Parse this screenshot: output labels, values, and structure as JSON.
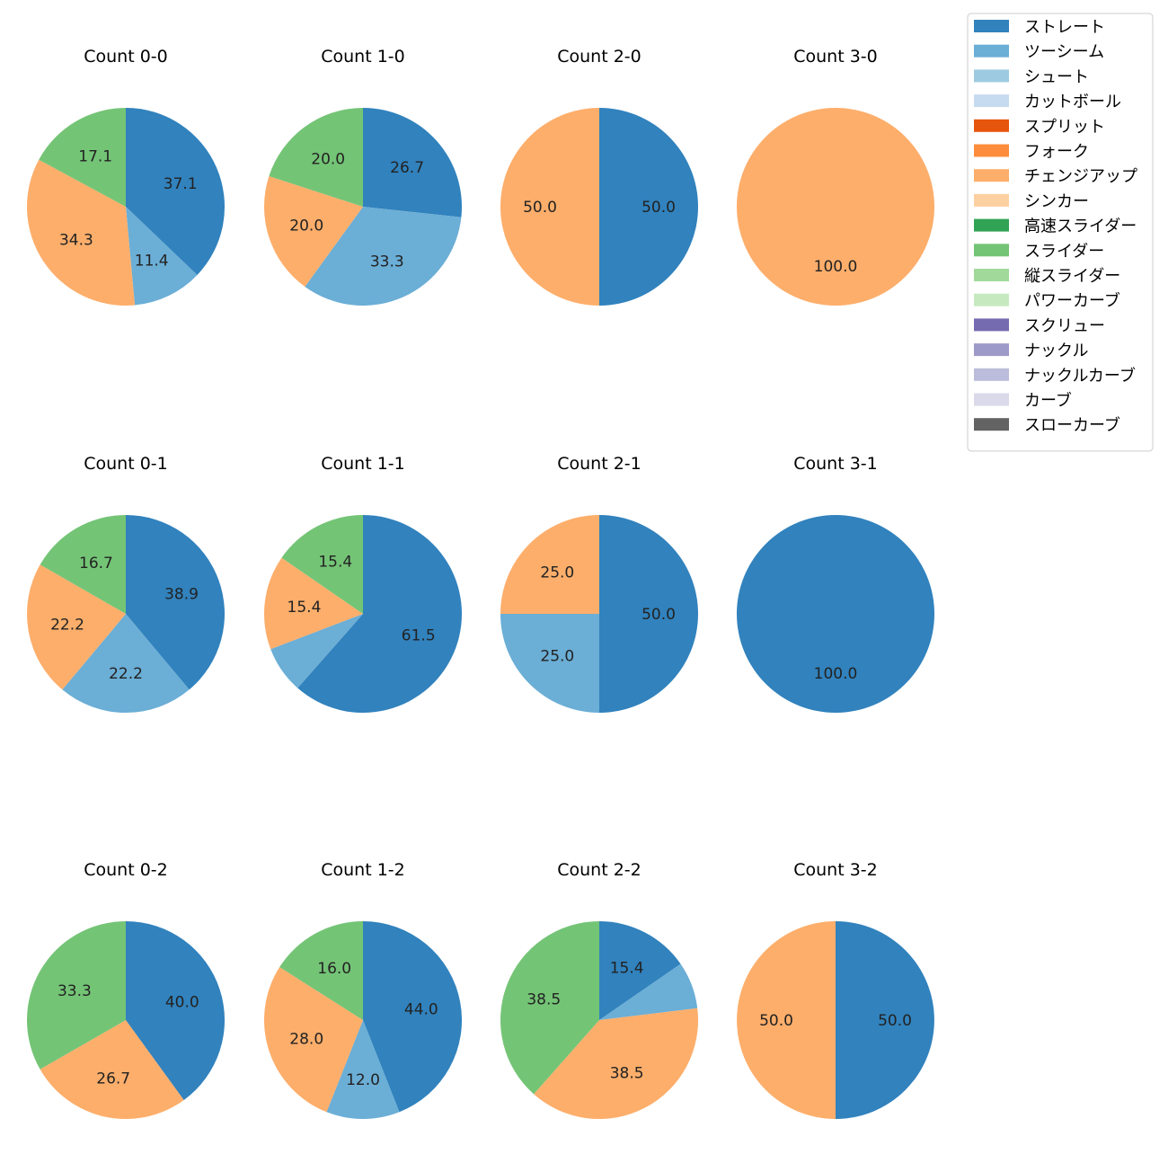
{
  "legend": {
    "placement": "top-right",
    "items": [
      {
        "label": "ストレート",
        "color": "#3182bd"
      },
      {
        "label": "ツーシーム",
        "color": "#6baed6"
      },
      {
        "label": "シュート",
        "color": "#9ecae1"
      },
      {
        "label": "カットボール",
        "color": "#c6dbef"
      },
      {
        "label": "スプリット",
        "color": "#e6550d"
      },
      {
        "label": "フォーク",
        "color": "#fd8d3c"
      },
      {
        "label": "チェンジアップ",
        "color": "#fdae6b"
      },
      {
        "label": "シンカー",
        "color": "#fdd0a2"
      },
      {
        "label": "高速スライダー",
        "color": "#31a354"
      },
      {
        "label": "スライダー",
        "color": "#74c476"
      },
      {
        "label": "縦スライダー",
        "color": "#a1d99b"
      },
      {
        "label": "パワーカーブ",
        "color": "#c7e9c0"
      },
      {
        "label": "スクリュー",
        "color": "#756bb1"
      },
      {
        "label": "ナックル",
        "color": "#9e9ac8"
      },
      {
        "label": "ナックルカーブ",
        "color": "#bcbddc"
      },
      {
        "label": "カーブ",
        "color": "#dadaeb"
      },
      {
        "label": "スローカーブ",
        "color": "#636363"
      }
    ]
  },
  "chart_data": [
    {
      "type": "pie",
      "title": "Count 0-0",
      "categories": [
        "ストレート",
        "ツーシーム",
        "チェンジアップ",
        "スライダー"
      ],
      "values": [
        37.1,
        11.4,
        34.3,
        17.1
      ],
      "labels": [
        "37.1",
        "11.4",
        "34.3",
        "17.1"
      ]
    },
    {
      "type": "pie",
      "title": "Count 1-0",
      "categories": [
        "ストレート",
        "ツーシーム",
        "チェンジアップ",
        "スライダー"
      ],
      "values": [
        26.7,
        33.3,
        20.0,
        20.0
      ],
      "labels": [
        "26.7",
        "33.3",
        "20.0",
        "20.0"
      ]
    },
    {
      "type": "pie",
      "title": "Count 2-0",
      "categories": [
        "ストレート",
        "チェンジアップ"
      ],
      "values": [
        50.0,
        50.0
      ],
      "labels": [
        "50.0",
        "50.0"
      ]
    },
    {
      "type": "pie",
      "title": "Count 3-0",
      "categories": [
        "チェンジアップ"
      ],
      "values": [
        100.0
      ],
      "labels": [
        "100.0"
      ]
    },
    {
      "type": "pie",
      "title": "Count 0-1",
      "categories": [
        "ストレート",
        "ツーシーム",
        "チェンジアップ",
        "スライダー"
      ],
      "values": [
        38.9,
        22.2,
        22.2,
        16.7
      ],
      "labels": [
        "38.9",
        "22.2",
        "22.2",
        "16.7"
      ]
    },
    {
      "type": "pie",
      "title": "Count 1-1",
      "categories": [
        "ストレート",
        "ツーシーム",
        "チェンジアップ",
        "スライダー"
      ],
      "values": [
        61.5,
        7.7,
        15.4,
        15.4
      ],
      "labels": [
        "61.5",
        "",
        "15.4",
        "15.4"
      ]
    },
    {
      "type": "pie",
      "title": "Count 2-1",
      "categories": [
        "ストレート",
        "ツーシーム",
        "チェンジアップ"
      ],
      "values": [
        50.0,
        25.0,
        25.0
      ],
      "labels": [
        "50.0",
        "25.0",
        "25.0"
      ]
    },
    {
      "type": "pie",
      "title": "Count 3-1",
      "categories": [
        "ストレート"
      ],
      "values": [
        100.0
      ],
      "labels": [
        "100.0"
      ]
    },
    {
      "type": "pie",
      "title": "Count 0-2",
      "categories": [
        "ストレート",
        "チェンジアップ",
        "スライダー"
      ],
      "values": [
        40.0,
        26.7,
        33.3
      ],
      "labels": [
        "40.0",
        "26.7",
        "33.3"
      ]
    },
    {
      "type": "pie",
      "title": "Count 1-2",
      "categories": [
        "ストレート",
        "ツーシーム",
        "チェンジアップ",
        "スライダー"
      ],
      "values": [
        44.0,
        12.0,
        28.0,
        16.0
      ],
      "labels": [
        "44.0",
        "12.0",
        "28.0",
        "16.0"
      ]
    },
    {
      "type": "pie",
      "title": "Count 2-2",
      "categories": [
        "ストレート",
        "ツーシーム",
        "チェンジアップ",
        "スライダー"
      ],
      "values": [
        15.4,
        7.7,
        38.5,
        38.5
      ],
      "labels": [
        "15.4",
        "",
        "38.5",
        "38.5"
      ]
    },
    {
      "type": "pie",
      "title": "Count 3-2",
      "categories": [
        "ストレート",
        "チェンジアップ"
      ],
      "values": [
        50.0,
        50.0
      ],
      "labels": [
        "50.0",
        "50.0"
      ]
    }
  ]
}
